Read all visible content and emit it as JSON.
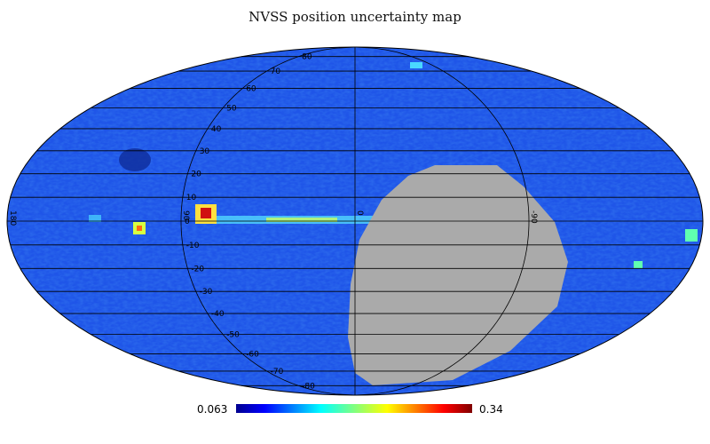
{
  "title": "NVSS position uncertainty map",
  "projection": "mollweide",
  "colormap": "jet",
  "colorbar": {
    "min_label": "0.063",
    "max_label": "0.34",
    "min": 0.063,
    "max": 0.34
  },
  "no_data_color": "#aaaaaa",
  "graticule": {
    "latitudes": [
      -80,
      -70,
      -60,
      -50,
      -40,
      -30,
      -20,
      -10,
      0,
      10,
      20,
      30,
      40,
      50,
      60,
      70,
      80
    ],
    "meridians": [
      -90,
      0,
      90
    ],
    "lat_labels": [
      "80",
      "70",
      "60",
      "50",
      "40",
      "30",
      "20",
      "10",
      "0",
      "-10",
      "-20",
      "-30",
      "-40",
      "-50",
      "-60",
      "-70",
      "-80"
    ],
    "lon_labels": [
      "180",
      "90",
      "0",
      "-90"
    ]
  },
  "colors": {
    "background_field": "#1f55e8",
    "galactic_plane": "#55e0ff",
    "hotspot": "#d01010"
  }
}
